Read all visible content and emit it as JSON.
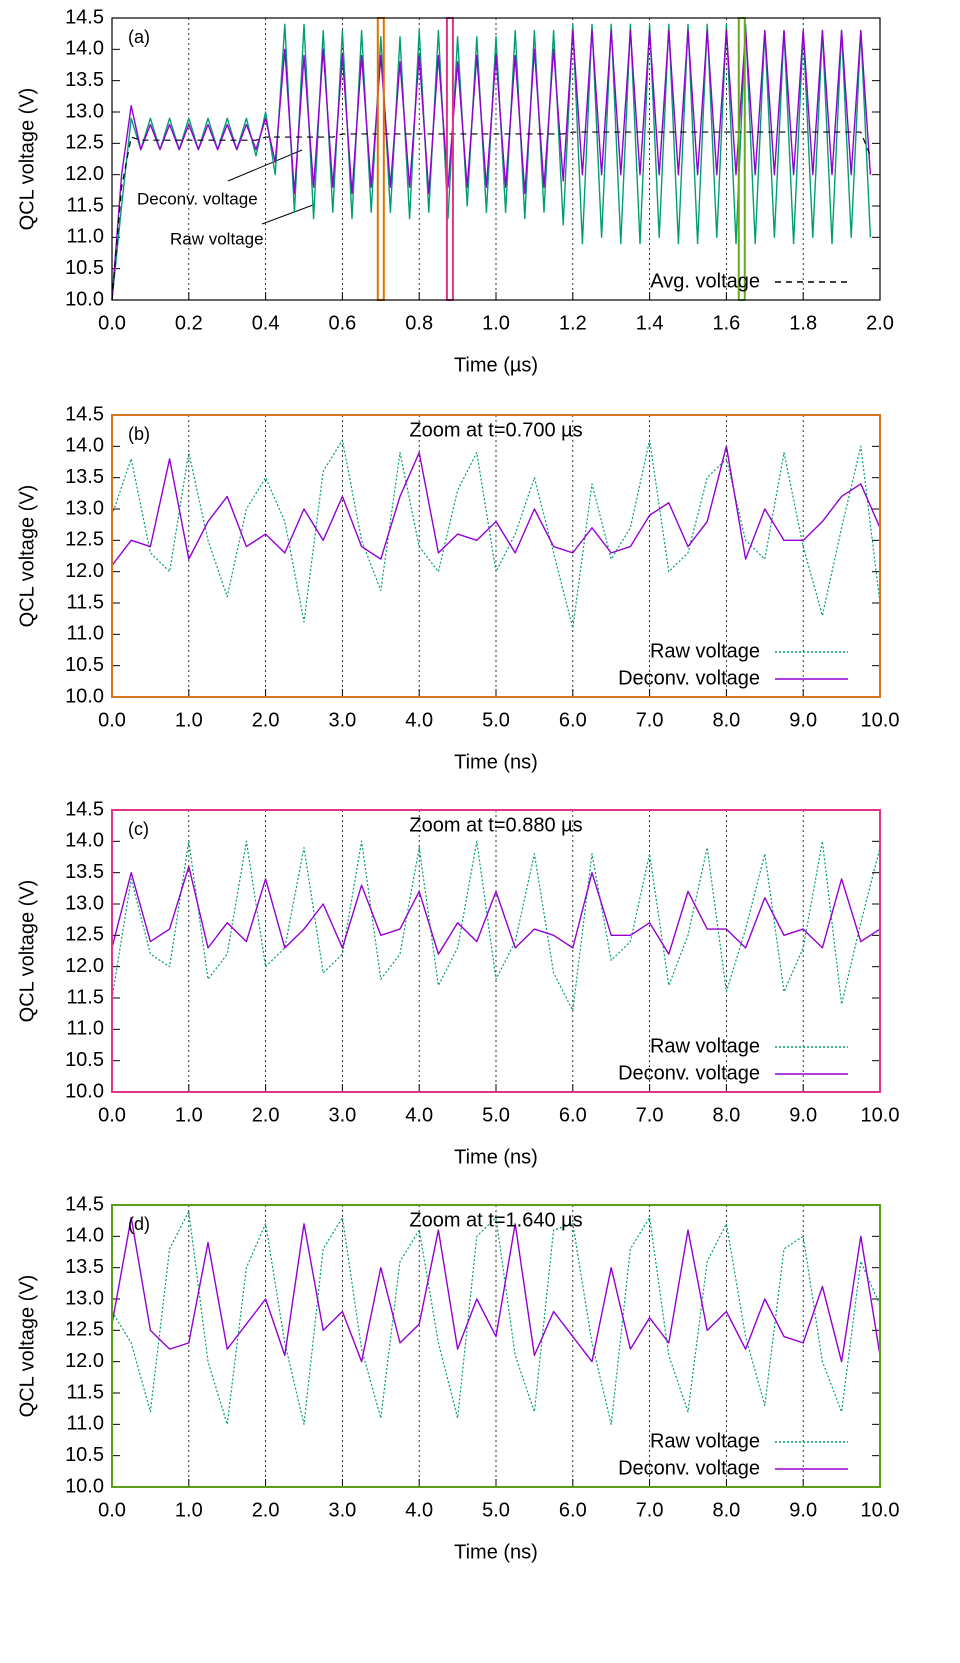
{
  "chart_data": [
    {
      "type": "line",
      "panel_label": "(a)",
      "x_label": "Time (µs)",
      "y_label": "QCL voltage (V)",
      "frame_color": "#000000",
      "grid": "x",
      "legend": "lower right",
      "xlim": [
        0,
        2
      ],
      "ylim": [
        10,
        14.5
      ],
      "xticks": [
        {
          "value": 0,
          "label": "0.0"
        },
        0.2,
        0.4,
        0.6,
        0.8,
        {
          "value": 1,
          "label": "1.0"
        },
        1.2,
        1.4,
        1.6,
        1.8,
        {
          "value": 2,
          "label": "2.0"
        }
      ],
      "yticks": [
        {
          "value": 10,
          "label": "10.0"
        },
        10.5,
        {
          "value": 11,
          "label": "11.0"
        },
        11.5,
        {
          "value": 12,
          "label": "12.0"
        },
        12.5,
        {
          "value": 13,
          "label": "13.0"
        },
        13.5,
        {
          "value": 14,
          "label": "14.0"
        },
        14.5
      ],
      "x": [
        0,
        0.025,
        0.05,
        0.075,
        0.1,
        0.125,
        0.15,
        0.175,
        0.2,
        0.225,
        0.25,
        0.275,
        0.3,
        0.325,
        0.35,
        0.375,
        0.4,
        0.425,
        0.45,
        0.475,
        0.5,
        0.525,
        0.55,
        0.575,
        0.6,
        0.625,
        0.65,
        0.675,
        0.7,
        0.725,
        0.75,
        0.775,
        0.8,
        0.825,
        0.85,
        0.875,
        0.9,
        0.925,
        0.95,
        0.975,
        1.0,
        1.025,
        1.05,
        1.075,
        1.1,
        1.125,
        1.15,
        1.175,
        1.2,
        1.225,
        1.25,
        1.275,
        1.3,
        1.325,
        1.35,
        1.375,
        1.4,
        1.425,
        1.45,
        1.475,
        1.5,
        1.525,
        1.55,
        1.575,
        1.6,
        1.625,
        1.65,
        1.675,
        1.7,
        1.725,
        1.75,
        1.775,
        1.8,
        1.825,
        1.85,
        1.875,
        1.9,
        1.925,
        1.95,
        1.975
      ],
      "series": [
        {
          "name": "Raw voltage",
          "color": "#009e73",
          "line_style": "solid",
          "in_legend": false,
          "values": [
            10.0,
            11.5,
            12.9,
            12.4,
            12.9,
            12.4,
            12.9,
            12.4,
            12.9,
            12.4,
            12.9,
            12.4,
            12.9,
            12.4,
            12.9,
            12.3,
            13.0,
            12.0,
            14.4,
            11.4,
            14.4,
            11.3,
            14.3,
            11.4,
            14.3,
            11.3,
            14.3,
            11.4,
            14.2,
            11.4,
            14.2,
            11.3,
            14.3,
            11.4,
            14.3,
            11.3,
            14.2,
            11.5,
            14.2,
            11.4,
            14.2,
            11.4,
            14.3,
            11.3,
            14.3,
            11.4,
            14.3,
            11.2,
            14.4,
            10.9,
            14.4,
            11.0,
            14.4,
            10.9,
            14.4,
            10.9,
            14.4,
            11.0,
            14.4,
            10.9,
            14.4,
            10.9,
            14.4,
            11.0,
            14.4,
            10.9,
            14.4,
            10.9,
            14.3,
            11.0,
            14.3,
            10.9,
            14.3,
            11.0,
            14.3,
            10.9,
            14.3,
            11.0,
            14.3,
            11.0
          ]
        },
        {
          "name": "Deconv. voltage",
          "color": "#9400d3",
          "line_style": "solid",
          "in_legend": false,
          "values": [
            10.0,
            12.0,
            13.1,
            12.4,
            12.8,
            12.4,
            12.8,
            12.4,
            12.8,
            12.4,
            12.8,
            12.4,
            12.8,
            12.4,
            12.8,
            12.4,
            12.9,
            12.2,
            14.0,
            11.7,
            13.9,
            11.8,
            14.0,
            11.8,
            13.9,
            11.7,
            13.9,
            11.8,
            13.9,
            11.8,
            13.8,
            11.8,
            13.9,
            11.7,
            13.9,
            11.8,
            13.8,
            11.8,
            13.9,
            11.8,
            13.9,
            11.8,
            13.9,
            11.7,
            14.0,
            11.8,
            14.0,
            11.9,
            14.3,
            12.0,
            14.3,
            12.0,
            14.3,
            12.0,
            14.3,
            12.0,
            14.3,
            12.0,
            14.3,
            12.0,
            14.3,
            12.0,
            14.3,
            12.0,
            14.3,
            12.0,
            14.3,
            12.0,
            14.3,
            12.0,
            14.3,
            12.0,
            14.3,
            12.0,
            14.3,
            12.0,
            14.3,
            12.0,
            14.3,
            12.0
          ]
        },
        {
          "name": "Avg. voltage",
          "color": "#000000",
          "line_style": "dashed",
          "in_legend": true,
          "values": [
            10.0,
            11.8,
            12.6,
            12.55,
            12.55,
            12.55,
            12.55,
            12.55,
            12.55,
            12.55,
            12.55,
            12.55,
            12.55,
            12.55,
            12.55,
            12.55,
            12.6,
            12.6,
            12.6,
            12.6,
            12.6,
            12.6,
            12.6,
            12.6,
            12.65,
            12.65,
            12.65,
            12.65,
            12.65,
            12.65,
            12.65,
            12.65,
            12.65,
            12.65,
            12.65,
            12.65,
            12.65,
            12.65,
            12.65,
            12.65,
            12.65,
            12.65,
            12.65,
            12.65,
            12.65,
            12.65,
            12.65,
            12.65,
            12.68,
            12.68,
            12.68,
            12.68,
            12.68,
            12.68,
            12.68,
            12.68,
            12.68,
            12.68,
            12.68,
            12.68,
            12.68,
            12.68,
            12.68,
            12.68,
            12.68,
            12.68,
            12.68,
            12.68,
            12.68,
            12.68,
            12.68,
            12.68,
            12.68,
            12.68,
            12.68,
            12.68,
            12.68,
            12.68,
            12.68,
            12.3
          ]
        }
      ],
      "markers": [
        {
          "x": 0.7,
          "color": "#e07000"
        },
        {
          "x": 0.88,
          "color": "#e0338a"
        },
        {
          "x": 1.64,
          "color": "#6aa81e"
        }
      ]
    },
    {
      "type": "line",
      "panel_label": "(b)",
      "title": "Zoom at t=0.700 µs",
      "x_label": "Time (ns)",
      "y_label": "QCL voltage (V)",
      "frame_color": "#d9731a",
      "grid": "x",
      "legend": "lower right",
      "xlim": [
        0,
        10
      ],
      "ylim": [
        10,
        14.5
      ],
      "xticks": [
        {
          "value": 0,
          "label": "0.0"
        },
        {
          "value": 1,
          "label": "1.0"
        },
        {
          "value": 2,
          "label": "2.0"
        },
        {
          "value": 3,
          "label": "3.0"
        },
        {
          "value": 4,
          "label": "4.0"
        },
        {
          "value": 5,
          "label": "5.0"
        },
        {
          "value": 6,
          "label": "6.0"
        },
        {
          "value": 7,
          "label": "7.0"
        },
        {
          "value": 8,
          "label": "8.0"
        },
        {
          "value": 9,
          "label": "9.0"
        },
        {
          "value": 10,
          "label": "10.0"
        }
      ],
      "yticks": [
        {
          "value": 10,
          "label": "10.0"
        },
        10.5,
        {
          "value": 11,
          "label": "11.0"
        },
        11.5,
        {
          "value": 12,
          "label": "12.0"
        },
        12.5,
        {
          "value": 13,
          "label": "13.0"
        },
        13.5,
        {
          "value": 14,
          "label": "14.0"
        },
        14.5
      ],
      "x": [
        0,
        0.25,
        0.5,
        0.75,
        1,
        1.25,
        1.5,
        1.75,
        2,
        2.25,
        2.5,
        2.75,
        3,
        3.25,
        3.5,
        3.75,
        4,
        4.25,
        4.5,
        4.75,
        5,
        5.25,
        5.5,
        5.75,
        6,
        6.25,
        6.5,
        6.75,
        7,
        7.25,
        7.5,
        7.75,
        8,
        8.25,
        8.5,
        8.75,
        9,
        9.25,
        9.5,
        9.75,
        10
      ],
      "series": [
        {
          "name": "Raw voltage",
          "color": "#009e73",
          "line_style": "dotted",
          "in_legend": true,
          "values": [
            12.9,
            13.8,
            12.3,
            12.0,
            13.9,
            12.5,
            11.6,
            13.0,
            13.5,
            12.8,
            11.2,
            13.6,
            14.1,
            12.5,
            11.7,
            13.9,
            12.4,
            12.0,
            13.3,
            13.9,
            12.0,
            12.6,
            13.5,
            12.3,
            11.1,
            13.4,
            12.2,
            12.7,
            14.1,
            12.0,
            12.3,
            13.5,
            13.8,
            12.5,
            12.2,
            13.9,
            12.4,
            11.3,
            12.7,
            14.0,
            11.5
          ]
        },
        {
          "name": "Deconv. voltage",
          "color": "#9400d3",
          "line_style": "solid",
          "in_legend": true,
          "values": [
            12.1,
            12.5,
            12.4,
            13.8,
            12.2,
            12.8,
            13.2,
            12.4,
            12.6,
            12.3,
            13.0,
            12.5,
            13.2,
            12.4,
            12.2,
            13.2,
            13.9,
            12.3,
            12.6,
            12.5,
            12.8,
            12.3,
            13.0,
            12.4,
            12.3,
            12.7,
            12.3,
            12.4,
            12.9,
            13.1,
            12.4,
            12.8,
            14.0,
            12.2,
            13.0,
            12.5,
            12.5,
            12.8,
            13.2,
            13.4,
            12.7
          ]
        }
      ]
    },
    {
      "type": "line",
      "panel_label": "(c)",
      "title": "Zoom at t=0.880 µs",
      "x_label": "Time (ns)",
      "y_label": "QCL voltage (V)",
      "frame_color": "#e0338a",
      "grid": "x",
      "legend": "lower right",
      "xlim": [
        0,
        10
      ],
      "ylim": [
        10,
        14.5
      ],
      "xticks": [
        {
          "value": 0,
          "label": "0.0"
        },
        {
          "value": 1,
          "label": "1.0"
        },
        {
          "value": 2,
          "label": "2.0"
        },
        {
          "value": 3,
          "label": "3.0"
        },
        {
          "value": 4,
          "label": "4.0"
        },
        {
          "value": 5,
          "label": "5.0"
        },
        {
          "value": 6,
          "label": "6.0"
        },
        {
          "value": 7,
          "label": "7.0"
        },
        {
          "value": 8,
          "label": "8.0"
        },
        {
          "value": 9,
          "label": "9.0"
        },
        {
          "value": 10,
          "label": "10.0"
        }
      ],
      "yticks": [
        {
          "value": 10,
          "label": "10.0"
        },
        10.5,
        {
          "value": 11,
          "label": "11.0"
        },
        11.5,
        {
          "value": 12,
          "label": "12.0"
        },
        12.5,
        {
          "value": 13,
          "label": "13.0"
        },
        13.5,
        {
          "value": 14,
          "label": "14.0"
        },
        14.5
      ],
      "x": [
        0,
        0.25,
        0.5,
        0.75,
        1,
        1.25,
        1.5,
        1.75,
        2,
        2.25,
        2.5,
        2.75,
        3,
        3.25,
        3.5,
        3.75,
        4,
        4.25,
        4.5,
        4.75,
        5,
        5.25,
        5.5,
        5.75,
        6,
        6.25,
        6.5,
        6.75,
        7,
        7.25,
        7.5,
        7.75,
        8,
        8.25,
        8.5,
        8.75,
        9,
        9.25,
        9.5,
        9.75,
        10
      ],
      "series": [
        {
          "name": "Raw voltage",
          "color": "#009e73",
          "line_style": "dotted",
          "in_legend": true,
          "values": [
            11.5,
            13.4,
            12.2,
            12.0,
            14.0,
            11.8,
            12.2,
            14.0,
            12.0,
            12.3,
            13.9,
            11.9,
            12.2,
            14.0,
            11.8,
            12.2,
            13.9,
            11.7,
            12.3,
            14.0,
            11.8,
            12.4,
            13.8,
            11.9,
            11.3,
            13.8,
            12.1,
            12.4,
            13.8,
            11.7,
            12.5,
            13.9,
            11.6,
            12.6,
            13.8,
            11.6,
            12.3,
            14.0,
            11.4,
            12.7,
            13.9
          ]
        },
        {
          "name": "Deconv. voltage",
          "color": "#9400d3",
          "line_style": "solid",
          "in_legend": true,
          "values": [
            12.3,
            13.5,
            12.4,
            12.6,
            13.6,
            12.3,
            12.7,
            12.4,
            13.4,
            12.3,
            12.6,
            13.0,
            12.3,
            13.3,
            12.5,
            12.6,
            13.2,
            12.2,
            12.7,
            12.4,
            13.2,
            12.3,
            12.6,
            12.5,
            12.3,
            13.5,
            12.5,
            12.5,
            12.7,
            12.2,
            13.2,
            12.6,
            12.6,
            12.3,
            13.1,
            12.5,
            12.6,
            12.3,
            13.4,
            12.4,
            12.6
          ]
        }
      ]
    },
    {
      "type": "line",
      "panel_label": "(d)",
      "title": "Zoom at t=1.640 µs",
      "x_label": "Time (ns)",
      "y_label": "QCL voltage (V)",
      "frame_color": "#5a9e1a",
      "grid": "x",
      "legend": "lower right",
      "xlim": [
        0,
        10
      ],
      "ylim": [
        10,
        14.5
      ],
      "xticks": [
        {
          "value": 0,
          "label": "0.0"
        },
        {
          "value": 1,
          "label": "1.0"
        },
        {
          "value": 2,
          "label": "2.0"
        },
        {
          "value": 3,
          "label": "3.0"
        },
        {
          "value": 4,
          "label": "4.0"
        },
        {
          "value": 5,
          "label": "5.0"
        },
        {
          "value": 6,
          "label": "6.0"
        },
        {
          "value": 7,
          "label": "7.0"
        },
        {
          "value": 8,
          "label": "8.0"
        },
        {
          "value": 9,
          "label": "9.0"
        },
        {
          "value": 10,
          "label": "10.0"
        }
      ],
      "yticks": [
        {
          "value": 10,
          "label": "10.0"
        },
        10.5,
        {
          "value": 11,
          "label": "11.0"
        },
        11.5,
        {
          "value": 12,
          "label": "12.0"
        },
        12.5,
        {
          "value": 13,
          "label": "13.0"
        },
        13.5,
        {
          "value": 14,
          "label": "14.0"
        },
        14.5
      ],
      "x": [
        0,
        0.25,
        0.5,
        0.75,
        1,
        1.25,
        1.5,
        1.75,
        2,
        2.25,
        2.5,
        2.75,
        3,
        3.25,
        3.5,
        3.75,
        4,
        4.25,
        4.5,
        4.75,
        5,
        5.25,
        5.5,
        5.75,
        6,
        6.25,
        6.5,
        6.75,
        7,
        7.25,
        7.5,
        7.75,
        8,
        8.25,
        8.5,
        8.75,
        9,
        9.25,
        9.5,
        9.75,
        10
      ],
      "series": [
        {
          "name": "Raw voltage",
          "color": "#009e73",
          "line_style": "dotted",
          "in_legend": true,
          "values": [
            12.8,
            12.3,
            11.2,
            13.8,
            14.4,
            12.0,
            11.0,
            13.5,
            14.2,
            12.3,
            11.0,
            13.8,
            14.3,
            12.2,
            11.1,
            13.6,
            14.1,
            12.3,
            11.1,
            14.0,
            14.3,
            12.1,
            11.2,
            14.1,
            14.2,
            12.3,
            11.0,
            13.8,
            14.3,
            12.1,
            11.2,
            13.6,
            14.2,
            12.4,
            11.3,
            13.8,
            14.0,
            12.0,
            11.2,
            13.6,
            12.9
          ]
        },
        {
          "name": "Deconv. voltage",
          "color": "#9400d3",
          "line_style": "solid",
          "in_legend": true,
          "values": [
            12.6,
            14.3,
            12.5,
            12.2,
            12.3,
            13.9,
            12.2,
            12.6,
            13.0,
            12.1,
            14.2,
            12.5,
            12.8,
            12.0,
            13.5,
            12.3,
            12.6,
            14.1,
            12.2,
            13.0,
            12.4,
            14.2,
            12.1,
            12.8,
            12.4,
            12.0,
            13.5,
            12.2,
            12.7,
            12.3,
            14.1,
            12.5,
            12.8,
            12.2,
            13.0,
            12.4,
            12.3,
            13.2,
            12.0,
            14.0,
            12.1
          ]
        }
      ]
    }
  ]
}
